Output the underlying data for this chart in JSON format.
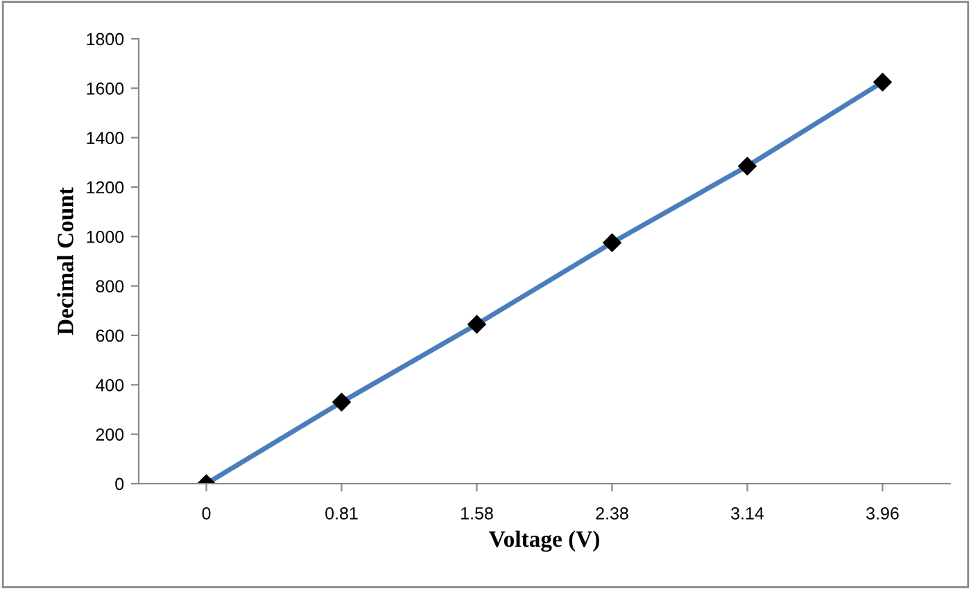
{
  "chart_data": {
    "type": "line",
    "xlabel": "Voltage (V)",
    "ylabel": "Decimal Count",
    "categories": [
      "0",
      "0.81",
      "1.58",
      "2.38",
      "3.14",
      "3.96"
    ],
    "series": [
      {
        "color": "#4a7ebb",
        "values": [
          0,
          330,
          645,
          975,
          1285,
          1625
        ]
      }
    ],
    "marker": "diamond",
    "line_style": "solid",
    "ylim": [
      0,
      1800
    ],
    "yticks": [
      0,
      200,
      400,
      600,
      800,
      1000,
      1200,
      1400,
      1600,
      1800
    ],
    "grid": false,
    "legend": false
  }
}
